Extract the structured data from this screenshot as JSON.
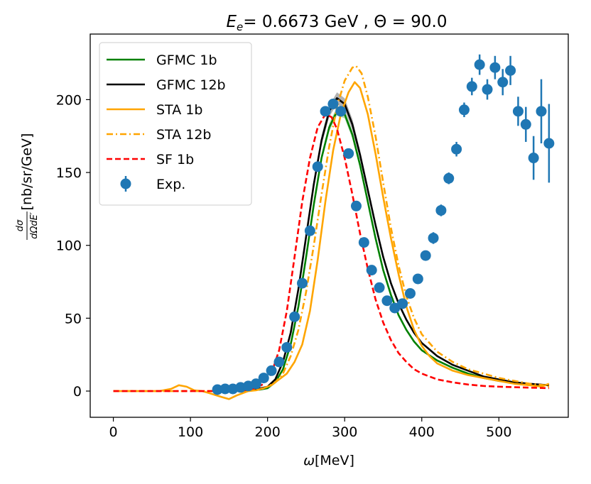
{
  "chart_data": {
    "type": "line",
    "title": {
      "prefix": "E",
      "subscript": "e",
      "suffix": "= 0.6673 GeV , Θ = 90.0"
    },
    "xlabel": {
      "symbol": "ω",
      "unit": "[MeV]"
    },
    "ylabel": {
      "frac_num": "dσ",
      "frac_den": "dΩdE′",
      "unit": "[nb/sr/GeV]"
    },
    "xlim": [
      -30,
      590
    ],
    "ylim": [
      -18,
      245
    ],
    "xticks": [
      0,
      100,
      200,
      300,
      400,
      500
    ],
    "yticks": [
      0,
      50,
      100,
      150,
      200
    ],
    "series": [
      {
        "name": "GFMC 1b",
        "color": "#008000",
        "dash": "solid",
        "band": 3,
        "points": [
          [
            130,
            0
          ],
          [
            170,
            0.3
          ],
          [
            190,
            1
          ],
          [
            200,
            2
          ],
          [
            210,
            6
          ],
          [
            220,
            15
          ],
          [
            230,
            32
          ],
          [
            240,
            58
          ],
          [
            250,
            92
          ],
          [
            260,
            128
          ],
          [
            270,
            160
          ],
          [
            280,
            181
          ],
          [
            290,
            192
          ],
          [
            300,
            190
          ],
          [
            310,
            176
          ],
          [
            320,
            155
          ],
          [
            330,
            130
          ],
          [
            340,
            105
          ],
          [
            350,
            83
          ],
          [
            360,
            66
          ],
          [
            370,
            52
          ],
          [
            380,
            42
          ],
          [
            390,
            34
          ],
          [
            400,
            28
          ],
          [
            420,
            21
          ],
          [
            440,
            16
          ],
          [
            460,
            12
          ],
          [
            480,
            9
          ],
          [
            500,
            7
          ],
          [
            520,
            5.5
          ],
          [
            540,
            4.5
          ],
          [
            565,
            4
          ]
        ]
      },
      {
        "name": "GFMC 12b",
        "color": "#000000",
        "dash": "solid",
        "band": 4,
        "points": [
          [
            130,
            0
          ],
          [
            180,
            0.5
          ],
          [
            200,
            3
          ],
          [
            210,
            8
          ],
          [
            220,
            20
          ],
          [
            230,
            40
          ],
          [
            240,
            70
          ],
          [
            250,
            106
          ],
          [
            260,
            142
          ],
          [
            270,
            172
          ],
          [
            280,
            192
          ],
          [
            290,
            201
          ],
          [
            300,
            197
          ],
          [
            310,
            183
          ],
          [
            320,
            162
          ],
          [
            330,
            138
          ],
          [
            340,
            114
          ],
          [
            350,
            92
          ],
          [
            360,
            74
          ],
          [
            370,
            60
          ],
          [
            380,
            49
          ],
          [
            390,
            40
          ],
          [
            400,
            33
          ],
          [
            420,
            24
          ],
          [
            440,
            18
          ],
          [
            460,
            14
          ],
          [
            480,
            10
          ],
          [
            500,
            8
          ],
          [
            520,
            6
          ],
          [
            540,
            5
          ],
          [
            565,
            4
          ]
        ]
      },
      {
        "name": "STA 1b",
        "color": "#ffa500",
        "dash": "solid",
        "band": 0,
        "points": [
          [
            0,
            0
          ],
          [
            60,
            0
          ],
          [
            75,
            1.5
          ],
          [
            85,
            4
          ],
          [
            95,
            3
          ],
          [
            105,
            0.5
          ],
          [
            115,
            0
          ],
          [
            125,
            -1.5
          ],
          [
            140,
            -4
          ],
          [
            150,
            -5.5
          ],
          [
            160,
            -3
          ],
          [
            175,
            0
          ],
          [
            185,
            0.5
          ],
          [
            195,
            2
          ],
          [
            205,
            4
          ],
          [
            215,
            8
          ],
          [
            225,
            12
          ],
          [
            235,
            20
          ],
          [
            245,
            32
          ],
          [
            255,
            55
          ],
          [
            265,
            90
          ],
          [
            275,
            130
          ],
          [
            285,
            165
          ],
          [
            295,
            190
          ],
          [
            305,
            205
          ],
          [
            313,
            212
          ],
          [
            320,
            208
          ],
          [
            330,
            190
          ],
          [
            340,
            163
          ],
          [
            350,
            133
          ],
          [
            360,
            105
          ],
          [
            370,
            80
          ],
          [
            380,
            58
          ],
          [
            390,
            42
          ],
          [
            400,
            31
          ],
          [
            410,
            24
          ],
          [
            420,
            19
          ],
          [
            440,
            14
          ],
          [
            460,
            11
          ],
          [
            480,
            9
          ],
          [
            500,
            7
          ],
          [
            520,
            5
          ],
          [
            540,
            4
          ],
          [
            555,
            3
          ],
          [
            565,
            5
          ]
        ]
      },
      {
        "name": "STA 12b",
        "color": "#ffa500",
        "dash": "dashdot",
        "band": 0,
        "points": [
          [
            0,
            0
          ],
          [
            170,
            0
          ],
          [
            190,
            1
          ],
          [
            200,
            3
          ],
          [
            210,
            6
          ],
          [
            220,
            12
          ],
          [
            230,
            24
          ],
          [
            240,
            42
          ],
          [
            250,
            68
          ],
          [
            260,
            100
          ],
          [
            270,
            135
          ],
          [
            280,
            168
          ],
          [
            290,
            195
          ],
          [
            300,
            213
          ],
          [
            310,
            222
          ],
          [
            315,
            223
          ],
          [
            322,
            218
          ],
          [
            330,
            202
          ],
          [
            340,
            175
          ],
          [
            350,
            143
          ],
          [
            360,
            112
          ],
          [
            370,
            86
          ],
          [
            380,
            65
          ],
          [
            390,
            50
          ],
          [
            400,
            39
          ],
          [
            420,
            27
          ],
          [
            440,
            20
          ],
          [
            460,
            15
          ],
          [
            480,
            12
          ],
          [
            500,
            9
          ],
          [
            520,
            7
          ],
          [
            540,
            5
          ],
          [
            560,
            4
          ],
          [
            565,
            3
          ]
        ]
      },
      {
        "name": "SF 1b",
        "color": "#ff0000",
        "dash": "dashed",
        "band": 0,
        "points": [
          [
            0,
            0
          ],
          [
            150,
            0
          ],
          [
            170,
            0.5
          ],
          [
            185,
            2
          ],
          [
            195,
            5
          ],
          [
            205,
            12
          ],
          [
            215,
            28
          ],
          [
            225,
            55
          ],
          [
            235,
            92
          ],
          [
            245,
            130
          ],
          [
            255,
            160
          ],
          [
            265,
            181
          ],
          [
            275,
            190
          ],
          [
            283,
            188
          ],
          [
            290,
            180
          ],
          [
            300,
            160
          ],
          [
            310,
            135
          ],
          [
            320,
            108
          ],
          [
            330,
            84
          ],
          [
            340,
            63
          ],
          [
            350,
            47
          ],
          [
            360,
            35
          ],
          [
            370,
            26
          ],
          [
            380,
            20
          ],
          [
            390,
            15
          ],
          [
            400,
            12
          ],
          [
            420,
            8
          ],
          [
            440,
            6
          ],
          [
            460,
            4.5
          ],
          [
            480,
            3.5
          ],
          [
            500,
            3
          ],
          [
            530,
            2.5
          ],
          [
            565,
            2
          ]
        ]
      }
    ],
    "experiment": {
      "name": "Exp.",
      "color": "#1f77b4",
      "points": [
        [
          135,
          1,
          1
        ],
        [
          145,
          1.5,
          1
        ],
        [
          155,
          1.5,
          1
        ],
        [
          165,
          2.5,
          1
        ],
        [
          175,
          3.5,
          1
        ],
        [
          185,
          5,
          1
        ],
        [
          195,
          9,
          1
        ],
        [
          205,
          14,
          1
        ],
        [
          215,
          20,
          1.5
        ],
        [
          225,
          30,
          1.5
        ],
        [
          235,
          51,
          2
        ],
        [
          245,
          74,
          2
        ],
        [
          255,
          110,
          2
        ],
        [
          265,
          154,
          2
        ],
        [
          275,
          192,
          2
        ],
        [
          285,
          197,
          2
        ],
        [
          295,
          192,
          2
        ],
        [
          305,
          163,
          2
        ],
        [
          315,
          127,
          2
        ],
        [
          325,
          102,
          2
        ],
        [
          335,
          83,
          2
        ],
        [
          345,
          71,
          2
        ],
        [
          355,
          62,
          2
        ],
        [
          365,
          57,
          2
        ],
        [
          375,
          60,
          2
        ],
        [
          385,
          67,
          2
        ],
        [
          395,
          77,
          3
        ],
        [
          405,
          93,
          3
        ],
        [
          415,
          105,
          4
        ],
        [
          425,
          124,
          4
        ],
        [
          435,
          146,
          4
        ],
        [
          445,
          166,
          5
        ],
        [
          455,
          193,
          5
        ],
        [
          465,
          209,
          6
        ],
        [
          475,
          224,
          7
        ],
        [
          485,
          207,
          7
        ],
        [
          495,
          222,
          8
        ],
        [
          505,
          212,
          9
        ],
        [
          515,
          220,
          10
        ],
        [
          525,
          192,
          10
        ],
        [
          535,
          183,
          12
        ],
        [
          545,
          160,
          15
        ],
        [
          555,
          192,
          22
        ],
        [
          565,
          170,
          27
        ]
      ]
    }
  }
}
